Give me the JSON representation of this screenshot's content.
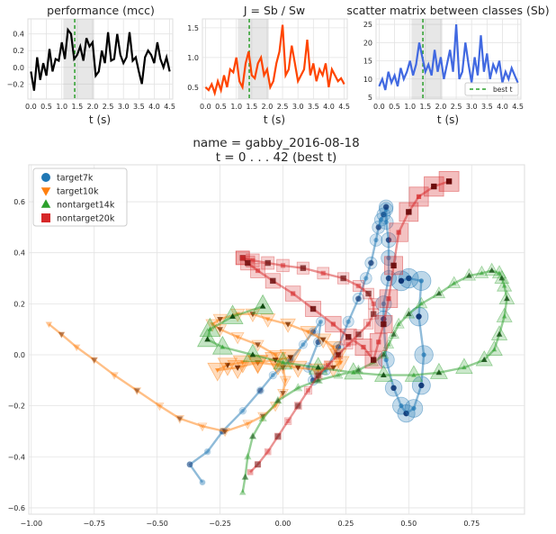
{
  "chart_data": [
    {
      "type": "line",
      "title": "performance (mcc)",
      "xlabel": "t (s)",
      "xlim": [
        -0.1,
        4.6
      ],
      "ylim": [
        -0.38,
        0.58
      ],
      "xticks": [
        0.0,
        0.5,
        1.0,
        1.5,
        2.0,
        2.5,
        3.0,
        3.5,
        4.0,
        4.5
      ],
      "xtick_labels": [
        "0.0",
        "0.5",
        "1.0",
        "1.5",
        "2.0",
        "2.5",
        "3.0",
        "3.5",
        "4.0",
        "4.5"
      ],
      "yticks": [
        -0.2,
        0.0,
        0.2,
        0.4
      ],
      "ytick_labels": [
        "−0.2",
        "0.0",
        "0.2",
        "0.4"
      ],
      "shaded_span": [
        1.05,
        2.05
      ],
      "best_t": 1.42,
      "color": "#000000",
      "grid": true,
      "x": [
        0.0,
        0.1,
        0.2,
        0.3,
        0.4,
        0.5,
        0.6,
        0.7,
        0.8,
        0.9,
        1.0,
        1.1,
        1.2,
        1.3,
        1.4,
        1.5,
        1.6,
        1.7,
        1.8,
        1.9,
        2.0,
        2.1,
        2.2,
        2.3,
        2.4,
        2.5,
        2.6,
        2.7,
        2.8,
        2.9,
        3.0,
        3.1,
        3.2,
        3.3,
        3.4,
        3.5,
        3.6,
        3.7,
        3.8,
        3.9,
        4.0,
        4.1,
        4.2,
        4.3,
        4.4,
        4.5
      ],
      "y": [
        -0.05,
        -0.28,
        0.12,
        -0.15,
        0.05,
        -0.1,
        0.22,
        -0.05,
        0.1,
        0.08,
        0.3,
        0.1,
        0.45,
        0.4,
        0.1,
        0.15,
        0.25,
        0.08,
        0.35,
        0.25,
        0.3,
        -0.1,
        -0.05,
        0.2,
        0.05,
        0.42,
        0.08,
        0.1,
        0.4,
        0.15,
        0.05,
        0.12,
        0.42,
        0.08,
        0.12,
        -0.05,
        -0.2,
        0.12,
        0.2,
        0.15,
        0.05,
        0.3,
        0.1,
        0.0,
        0.12,
        -0.05
      ]
    },
    {
      "type": "line",
      "title": "J = Sb / Sw",
      "xlabel": "t (s)",
      "xlim": [
        -0.1,
        4.6
      ],
      "ylim": [
        0.3,
        1.65
      ],
      "xticks": [
        0.0,
        0.5,
        1.0,
        1.5,
        2.0,
        2.5,
        3.0,
        3.5,
        4.0,
        4.5
      ],
      "xtick_labels": [
        "0.0",
        "0.5",
        "1.0",
        "1.5",
        "2.0",
        "2.5",
        "3.0",
        "3.5",
        "4.0",
        "4.5"
      ],
      "yticks": [
        0.5,
        1.0,
        1.5
      ],
      "ytick_labels": [
        "0.5",
        "1.0",
        "1.5"
      ],
      "shaded_span": [
        1.05,
        2.05
      ],
      "best_t": 1.42,
      "color": "#ff4500",
      "grid": true,
      "x": [
        0.0,
        0.1,
        0.2,
        0.3,
        0.4,
        0.5,
        0.6,
        0.7,
        0.8,
        0.9,
        1.0,
        1.1,
        1.2,
        1.3,
        1.4,
        1.5,
        1.6,
        1.7,
        1.8,
        1.9,
        2.0,
        2.1,
        2.2,
        2.3,
        2.4,
        2.5,
        2.6,
        2.7,
        2.8,
        2.9,
        3.0,
        3.1,
        3.2,
        3.3,
        3.4,
        3.5,
        3.6,
        3.7,
        3.8,
        3.9,
        4.0,
        4.1,
        4.2,
        4.3,
        4.4,
        4.5
      ],
      "y": [
        0.5,
        0.45,
        0.55,
        0.4,
        0.6,
        0.45,
        0.7,
        0.5,
        0.8,
        0.75,
        1.0,
        0.6,
        0.5,
        0.9,
        1.1,
        0.7,
        0.65,
        0.9,
        1.0,
        0.7,
        0.8,
        0.5,
        0.6,
        0.9,
        1.1,
        1.55,
        0.7,
        0.8,
        1.2,
        0.9,
        0.6,
        0.7,
        0.8,
        1.3,
        0.7,
        0.9,
        0.6,
        0.8,
        0.7,
        0.9,
        0.5,
        0.8,
        0.7,
        0.6,
        0.65,
        0.55
      ]
    },
    {
      "type": "line",
      "title": "scatter matrix between classes (Sb)",
      "xlabel": "t (s)",
      "xlim": [
        -0.1,
        4.6
      ],
      "ylim": [
        4.5,
        26.5
      ],
      "xticks": [
        0.0,
        0.5,
        1.0,
        1.5,
        2.0,
        2.5,
        3.0,
        3.5,
        4.0,
        4.5
      ],
      "xtick_labels": [
        "0.0",
        "0.5",
        "1.0",
        "1.5",
        "2.0",
        "2.5",
        "3.0",
        "3.5",
        "4.0",
        "4.5"
      ],
      "yticks": [
        5,
        10,
        15,
        20,
        25
      ],
      "ytick_labels": [
        "5",
        "10",
        "15",
        "20",
        "25"
      ],
      "shaded_span": [
        1.05,
        2.05
      ],
      "best_t": 1.42,
      "color": "#4169e1",
      "grid": true,
      "legend": {
        "label": "best t",
        "loc": "lower right"
      },
      "x": [
        0.0,
        0.1,
        0.2,
        0.3,
        0.4,
        0.5,
        0.6,
        0.7,
        0.8,
        0.9,
        1.0,
        1.1,
        1.2,
        1.3,
        1.4,
        1.5,
        1.6,
        1.7,
        1.8,
        1.9,
        2.0,
        2.1,
        2.2,
        2.3,
        2.4,
        2.5,
        2.6,
        2.7,
        2.8,
        2.9,
        3.0,
        3.1,
        3.2,
        3.3,
        3.4,
        3.5,
        3.6,
        3.7,
        3.8,
        3.9,
        4.0,
        4.1,
        4.2,
        4.3,
        4.4,
        4.5
      ],
      "y": [
        8,
        10,
        7,
        12,
        9,
        11,
        8,
        13,
        10,
        12,
        15,
        11,
        14,
        20,
        16,
        12,
        14,
        11,
        18,
        12,
        16,
        10,
        14,
        18,
        12,
        25,
        10,
        12,
        20,
        14,
        9,
        16,
        11,
        22,
        12,
        17,
        10,
        14,
        12,
        15,
        9,
        12,
        10,
        13,
        11,
        9
      ]
    },
    {
      "type": "scatter",
      "title": "name = gabby_2016-08-18\nt = 0 . . .  42 (best t)",
      "xlim": [
        -1.01,
        0.96
      ],
      "ylim": [
        -0.625,
        0.745
      ],
      "xticks": [
        -1.0,
        -0.75,
        -0.5,
        -0.25,
        0.0,
        0.25,
        0.5,
        0.75
      ],
      "xtick_labels": [
        "−1.00",
        "−0.75",
        "−0.50",
        "−0.25",
        "0.00",
        "0.25",
        "0.50",
        "0.75"
      ],
      "yticks": [
        -0.6,
        -0.4,
        -0.2,
        0.0,
        0.2,
        0.4,
        0.6
      ],
      "ytick_labels": [
        "−0.6",
        "−0.4",
        "−0.2",
        "0.0",
        "0.2",
        "0.4",
        "0.6"
      ],
      "grid": true,
      "legend_loc": "upper left",
      "series": [
        {
          "name": "target7k",
          "marker": "circle",
          "color": "#1f77b4",
          "dark": "#0d3575",
          "x": [
            -0.32,
            -0.37,
            -0.3,
            -0.24,
            -0.16,
            -0.09,
            -0.04,
            0.03,
            0.08,
            0.12,
            0.15,
            0.14,
            0.1,
            0.12,
            0.17,
            0.22,
            0.26,
            0.3,
            0.33,
            0.35,
            0.37,
            0.38,
            0.39,
            0.4,
            0.41,
            0.41,
            0.41,
            0.42,
            0.42,
            0.42,
            0.4,
            0.4,
            0.41,
            0.44,
            0.47,
            0.49,
            0.52,
            0.55,
            0.56,
            0.54,
            0.55,
            0.5,
            0.47
          ],
          "y": [
            -0.5,
            -0.43,
            -0.38,
            -0.3,
            -0.22,
            -0.14,
            -0.08,
            -0.02,
            0.04,
            0.09,
            0.13,
            0.05,
            -0.05,
            -0.1,
            -0.06,
            0.03,
            0.13,
            0.22,
            0.3,
            0.36,
            0.45,
            0.5,
            0.53,
            0.55,
            0.57,
            0.58,
            0.52,
            0.45,
            0.38,
            0.3,
            0.2,
            0.14,
            -0.02,
            -0.13,
            -0.2,
            -0.23,
            -0.21,
            -0.12,
            0.0,
            0.15,
            0.29,
            0.3,
            0.29
          ]
        },
        {
          "name": "target10k",
          "marker": "triangle-down",
          "color": "#ff7f0e",
          "dark": "#7a2e00",
          "x": [
            -0.93,
            -0.88,
            -0.82,
            -0.75,
            -0.67,
            -0.58,
            -0.49,
            -0.41,
            -0.32,
            -0.23,
            -0.14,
            -0.08,
            -0.03,
            0.0,
            0.01,
            0.0,
            -0.03,
            -0.1,
            -0.18,
            -0.25,
            -0.28,
            -0.25,
            -0.18,
            -0.12,
            -0.06,
            0.02,
            0.1,
            0.16,
            0.2,
            0.22,
            0.23,
            0.2,
            0.14,
            0.06,
            -0.02,
            -0.1,
            -0.16,
            -0.22,
            -0.26,
            -0.18,
            -0.1,
            -0.03,
            0.03
          ],
          "y": [
            0.12,
            0.08,
            0.03,
            -0.02,
            -0.08,
            -0.14,
            -0.2,
            -0.25,
            -0.28,
            -0.3,
            -0.27,
            -0.24,
            -0.2,
            -0.15,
            -0.1,
            -0.05,
            0.0,
            0.04,
            0.07,
            0.1,
            0.12,
            0.14,
            0.16,
            0.16,
            0.14,
            0.12,
            0.09,
            0.06,
            0.03,
            0.0,
            -0.03,
            -0.05,
            -0.06,
            -0.05,
            -0.04,
            -0.03,
            -0.03,
            -0.04,
            -0.06,
            -0.05,
            -0.03,
            -0.02,
            -0.01
          ]
        },
        {
          "name": "nontarget14k",
          "marker": "triangle-up",
          "color": "#2ca02c",
          "dark": "#104a10",
          "x": [
            -0.16,
            -0.15,
            -0.14,
            -0.12,
            -0.08,
            -0.02,
            0.06,
            0.14,
            0.22,
            0.3,
            0.36,
            0.4,
            0.42,
            0.44,
            0.46,
            0.5,
            0.55,
            0.62,
            0.68,
            0.74,
            0.79,
            0.83,
            0.86,
            0.87,
            0.88,
            0.89,
            0.88,
            0.86,
            0.84,
            0.8,
            0.72,
            0.62,
            0.52,
            0.4,
            0.28,
            0.14,
            0.0,
            -0.12,
            -0.24,
            -0.3,
            -0.29,
            -0.2,
            -0.08
          ],
          "y": [
            -0.54,
            -0.48,
            -0.4,
            -0.32,
            -0.25,
            -0.18,
            -0.13,
            -0.1,
            -0.08,
            -0.06,
            -0.03,
            0.0,
            0.04,
            0.08,
            0.12,
            0.16,
            0.2,
            0.24,
            0.28,
            0.31,
            0.32,
            0.33,
            0.32,
            0.3,
            0.27,
            0.22,
            0.15,
            0.08,
            0.02,
            -0.02,
            -0.05,
            -0.07,
            -0.08,
            -0.08,
            -0.07,
            -0.05,
            -0.03,
            0.0,
            0.03,
            0.06,
            0.1,
            0.15,
            0.19
          ]
        },
        {
          "name": "nontarget20k",
          "marker": "square",
          "color": "#d62728",
          "dark": "#6a0a0a",
          "x": [
            -0.13,
            -0.1,
            -0.06,
            -0.02,
            0.02,
            0.06,
            0.1,
            0.14,
            0.18,
            0.22,
            0.26,
            0.3,
            0.34,
            0.36,
            0.36,
            0.34,
            0.3,
            0.24,
            0.16,
            0.08,
            0.0,
            -0.06,
            -0.12,
            -0.16,
            -0.16,
            -0.14,
            -0.1,
            -0.04,
            0.04,
            0.12,
            0.2,
            0.26,
            0.32,
            0.36,
            0.38,
            0.4,
            0.42,
            0.44,
            0.46,
            0.5,
            0.54,
            0.6,
            0.66
          ],
          "y": [
            -0.46,
            -0.43,
            -0.38,
            -0.32,
            -0.26,
            -0.2,
            -0.14,
            -0.08,
            -0.04,
            0.0,
            0.04,
            0.08,
            0.12,
            0.16,
            0.2,
            0.24,
            0.27,
            0.3,
            0.32,
            0.34,
            0.35,
            0.36,
            0.37,
            0.38,
            0.38,
            0.36,
            0.33,
            0.29,
            0.24,
            0.18,
            0.12,
            0.07,
            0.03,
            -0.02,
            0.05,
            0.12,
            0.22,
            0.35,
            0.48,
            0.56,
            0.62,
            0.66,
            0.68
          ]
        }
      ]
    }
  ]
}
